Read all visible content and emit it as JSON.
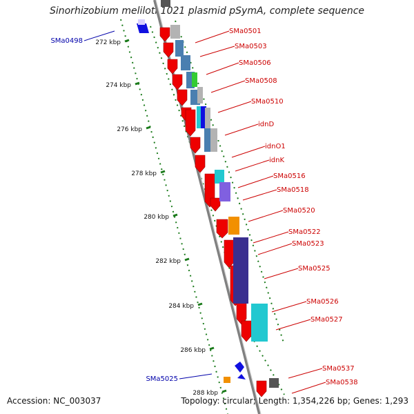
{
  "title": "Sinorhizobium meliloti 1021 plasmid pSymA, complete sequence",
  "accession": "Accession: NC_003037",
  "summary": {
    "topology": "Topology: circular;",
    "length": "Length: 1,354,226 bp;",
    "genes": "Genes: 1,293"
  },
  "scale": {
    "labels": [
      "272 kbp",
      "274 kbp",
      "276 kbp",
      "278 kbp",
      "280 kbp",
      "282 kbp",
      "284 kbp",
      "286 kbp",
      "288 kbp"
    ]
  },
  "gene_labels_right": [
    "SMa0501",
    "SMa0503",
    "SMa0506",
    "SMa0508",
    "SMa0510",
    "idnD",
    "idnO1",
    "idnK",
    "SMa0516",
    "SMa0518",
    "SMa0520",
    "SMa0522",
    "SMa0523",
    "SMa0525",
    "SMa0526",
    "SMa0527",
    "SMa0537",
    "SMa0538"
  ],
  "gene_labels_left": [
    "SMa0498",
    "SMa5025"
  ],
  "colors": {
    "cds": "#ee0000",
    "backbone": "#808080",
    "ruler": "#1a7a1a",
    "label_right": "#cc0000",
    "label_left": "#0000aa",
    "cog_gray": "#b3b3b3",
    "cog_steelblue": "#4a7fb0",
    "cog_green": "#33cc33",
    "cog_blue": "#1010e0",
    "cog_cyan": "#22c8d0",
    "cog_purple": "#8060e0",
    "cog_orange": "#f29000",
    "cog_indigo": "#3a2f8f",
    "cog_darkgray": "#555555"
  }
}
